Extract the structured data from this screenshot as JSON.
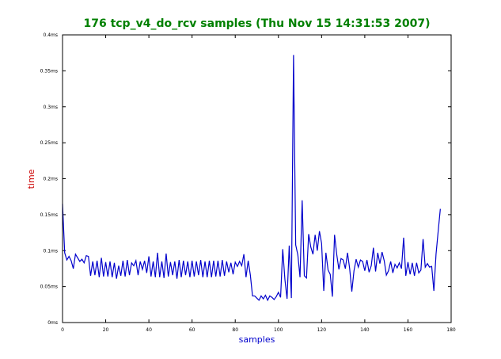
{
  "chart_data": {
    "type": "line",
    "title": "176 tcp_v4_do_rcv samples (Thu Nov 15 14:31:53 2007)",
    "xlabel": "samples",
    "ylabel": "time",
    "xlim": [
      0,
      180
    ],
    "ylim": [
      0,
      0.4
    ],
    "x_ticks": [
      0,
      20,
      40,
      60,
      80,
      100,
      120,
      140,
      160,
      180
    ],
    "y_ticks": [
      0,
      0.05,
      0.1,
      0.15,
      0.2,
      0.25,
      0.3,
      0.35,
      0.4
    ],
    "x_tick_labels": [
      "0",
      "20",
      "40",
      "60",
      "80",
      "100",
      "120",
      "140",
      "160",
      "180"
    ],
    "y_tick_labels": [
      "0ms",
      "0.05ms",
      "0.1ms",
      "0.15ms",
      "0.2ms",
      "0.25ms",
      "0.3ms",
      "0.35ms",
      "0.4ms"
    ],
    "grid": false,
    "series": [
      {
        "x": [
          0,
          1,
          2,
          3,
          4,
          5,
          6,
          7,
          8,
          9,
          10,
          11,
          12,
          13,
          14,
          15,
          16,
          17,
          18,
          19,
          20,
          21,
          22,
          23,
          24,
          25,
          26,
          27,
          28,
          29,
          30,
          31,
          32,
          33,
          34,
          35,
          36,
          37,
          38,
          39,
          40,
          41,
          42,
          43,
          44,
          45,
          46,
          47,
          48,
          49,
          50,
          51,
          52,
          53,
          54,
          55,
          56,
          57,
          58,
          59,
          60,
          61,
          62,
          63,
          64,
          65,
          66,
          67,
          68,
          69,
          70,
          71,
          72,
          73,
          74,
          75,
          76,
          77,
          78,
          79,
          80,
          81,
          82,
          83,
          84,
          85,
          86,
          87,
          88,
          89,
          90,
          91,
          92,
          93,
          94,
          95,
          96,
          97,
          98,
          99,
          100,
          101,
          102,
          103,
          104,
          105,
          106,
          107,
          108,
          109,
          110,
          111,
          112,
          113,
          114,
          115,
          116,
          117,
          118,
          119,
          120,
          121,
          122,
          123,
          124,
          125,
          126,
          127,
          128,
          129,
          130,
          131,
          132,
          133,
          134,
          135,
          136,
          137,
          138,
          139,
          140,
          141,
          142,
          143,
          144,
          145,
          146,
          147,
          148,
          149,
          150,
          151,
          152,
          153,
          154,
          155,
          156,
          157,
          158,
          159,
          160,
          161,
          162,
          163,
          164,
          165,
          166,
          167,
          168,
          169,
          170,
          171,
          172,
          173,
          174,
          175
        ],
        "y": [
          0.165,
          0.097,
          0.087,
          0.092,
          0.086,
          0.075,
          0.095,
          0.09,
          0.085,
          0.088,
          0.083,
          0.093,
          0.092,
          0.065,
          0.085,
          0.066,
          0.086,
          0.063,
          0.09,
          0.064,
          0.084,
          0.064,
          0.085,
          0.063,
          0.083,
          0.061,
          0.079,
          0.065,
          0.086,
          0.064,
          0.087,
          0.066,
          0.083,
          0.079,
          0.086,
          0.066,
          0.085,
          0.074,
          0.086,
          0.069,
          0.092,
          0.064,
          0.085,
          0.063,
          0.097,
          0.063,
          0.085,
          0.062,
          0.096,
          0.064,
          0.084,
          0.066,
          0.085,
          0.061,
          0.087,
          0.063,
          0.086,
          0.066,
          0.085,
          0.063,
          0.086,
          0.064,
          0.085,
          0.066,
          0.087,
          0.063,
          0.085,
          0.063,
          0.086,
          0.063,
          0.086,
          0.064,
          0.086,
          0.064,
          0.087,
          0.065,
          0.085,
          0.07,
          0.083,
          0.067,
          0.084,
          0.078,
          0.085,
          0.079,
          0.095,
          0.063,
          0.086,
          0.066,
          0.037,
          0.037,
          0.034,
          0.031,
          0.037,
          0.033,
          0.038,
          0.031,
          0.037,
          0.035,
          0.032,
          0.036,
          0.042,
          0.035,
          0.102,
          0.06,
          0.033,
          0.107,
          0.034,
          0.372,
          0.108,
          0.094,
          0.063,
          0.17,
          0.065,
          0.062,
          0.123,
          0.105,
          0.095,
          0.122,
          0.1,
          0.127,
          0.11,
          0.044,
          0.097,
          0.073,
          0.067,
          0.036,
          0.122,
          0.095,
          0.074,
          0.089,
          0.087,
          0.075,
          0.097,
          0.075,
          0.043,
          0.072,
          0.088,
          0.077,
          0.087,
          0.085,
          0.072,
          0.087,
          0.07,
          0.079,
          0.104,
          0.071,
          0.097,
          0.082,
          0.098,
          0.086,
          0.066,
          0.072,
          0.085,
          0.069,
          0.081,
          0.076,
          0.083,
          0.075,
          0.118,
          0.065,
          0.084,
          0.067,
          0.083,
          0.065,
          0.083,
          0.069,
          0.073,
          0.116,
          0.077,
          0.082,
          0.077,
          0.078,
          0.044,
          0.095,
          0.127,
          0.158
        ]
      }
    ],
    "colors": {
      "line": "#0000cc",
      "title": "#008000",
      "xlabel": "#0000cc",
      "ylabel": "#cc0000"
    }
  }
}
